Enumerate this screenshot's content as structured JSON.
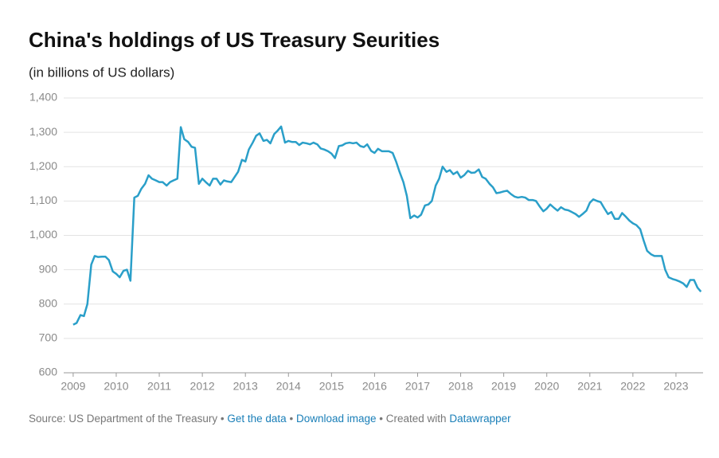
{
  "chart_data": {
    "type": "line",
    "title": "China's holdings of US Treasury Seurities",
    "subtitle": "(in billions of US dollars)",
    "footer": {
      "source": "Source: US Department of the Treasury",
      "separator": "•",
      "links": [
        "Get the data",
        "Download image"
      ],
      "credit": "Created with",
      "credit_link": "Datawrapper"
    },
    "x": [
      2009,
      2009.08,
      2009.17,
      2009.25,
      2009.33,
      2009.42,
      2009.5,
      2009.58,
      2009.67,
      2009.75,
      2009.83,
      2009.92,
      2010,
      2010.08,
      2010.17,
      2010.25,
      2010.33,
      2010.42,
      2010.5,
      2010.58,
      2010.67,
      2010.75,
      2010.83,
      2010.92,
      2011,
      2011.08,
      2011.17,
      2011.25,
      2011.33,
      2011.42,
      2011.5,
      2011.58,
      2011.67,
      2011.75,
      2011.83,
      2011.92,
      2012,
      2012.08,
      2012.17,
      2012.25,
      2012.33,
      2012.42,
      2012.5,
      2012.58,
      2012.67,
      2012.75,
      2012.83,
      2012.92,
      2013,
      2013.08,
      2013.17,
      2013.25,
      2013.33,
      2013.42,
      2013.5,
      2013.58,
      2013.67,
      2013.75,
      2013.83,
      2013.92,
      2014,
      2014.08,
      2014.17,
      2014.25,
      2014.33,
      2014.42,
      2014.5,
      2014.58,
      2014.67,
      2014.75,
      2014.83,
      2014.92,
      2015,
      2015.08,
      2015.17,
      2015.25,
      2015.33,
      2015.42,
      2015.5,
      2015.58,
      2015.67,
      2015.75,
      2015.83,
      2015.92,
      2016,
      2016.08,
      2016.17,
      2016.25,
      2016.33,
      2016.42,
      2016.5,
      2016.58,
      2016.67,
      2016.75,
      2016.83,
      2016.92,
      2017,
      2017.08,
      2017.17,
      2017.25,
      2017.33,
      2017.42,
      2017.5,
      2017.58,
      2017.67,
      2017.75,
      2017.83,
      2017.92,
      2018,
      2018.08,
      2018.17,
      2018.25,
      2018.33,
      2018.42,
      2018.5,
      2018.58,
      2018.67,
      2018.75,
      2018.83,
      2018.92,
      2019,
      2019.08,
      2019.17,
      2019.25,
      2019.33,
      2019.42,
      2019.5,
      2019.58,
      2019.67,
      2019.75,
      2019.83,
      2019.92,
      2020,
      2020.08,
      2020.17,
      2020.25,
      2020.33,
      2020.42,
      2020.5,
      2020.58,
      2020.67,
      2020.75,
      2020.83,
      2020.92,
      2021,
      2021.08,
      2021.17,
      2021.25,
      2021.33,
      2021.42,
      2021.5,
      2021.58,
      2021.67,
      2021.75,
      2021.83,
      2021.92,
      2022,
      2022.08,
      2022.17,
      2022.25,
      2022.33,
      2022.42,
      2022.5,
      2022.58,
      2022.67,
      2022.75,
      2022.83,
      2022.92,
      2023,
      2023.08,
      2023.17,
      2023.25,
      2023.33,
      2023.42,
      2023.5,
      2023.58
    ],
    "values": [
      740,
      745,
      768,
      765,
      800,
      915,
      940,
      937,
      938,
      938,
      928,
      895,
      888,
      878,
      897,
      900,
      868,
      1110,
      1115,
      1135,
      1150,
      1175,
      1165,
      1160,
      1155,
      1155,
      1145,
      1155,
      1160,
      1165,
      1315,
      1280,
      1272,
      1258,
      1255,
      1150,
      1165,
      1155,
      1145,
      1165,
      1165,
      1148,
      1160,
      1157,
      1155,
      1170,
      1185,
      1220,
      1215,
      1250,
      1270,
      1290,
      1297,
      1275,
      1278,
      1268,
      1295,
      1305,
      1317,
      1270,
      1275,
      1272,
      1272,
      1263,
      1270,
      1268,
      1265,
      1270,
      1265,
      1253,
      1250,
      1245,
      1238,
      1225,
      1260,
      1262,
      1268,
      1270,
      1268,
      1270,
      1260,
      1257,
      1265,
      1246,
      1240,
      1252,
      1245,
      1245,
      1245,
      1240,
      1215,
      1185,
      1155,
      1115,
      1050,
      1058,
      1052,
      1060,
      1087,
      1090,
      1100,
      1145,
      1165,
      1200,
      1185,
      1190,
      1178,
      1185,
      1168,
      1175,
      1188,
      1182,
      1183,
      1192,
      1170,
      1165,
      1150,
      1140,
      1123,
      1125,
      1128,
      1130,
      1120,
      1113,
      1110,
      1112,
      1110,
      1103,
      1103,
      1100,
      1085,
      1070,
      1078,
      1090,
      1080,
      1072,
      1082,
      1075,
      1073,
      1068,
      1062,
      1054,
      1062,
      1072,
      1095,
      1105,
      1100,
      1097,
      1080,
      1062,
      1068,
      1048,
      1048,
      1065,
      1055,
      1043,
      1035,
      1030,
      1018,
      985,
      955,
      945,
      940,
      940,
      940,
      900,
      878,
      873,
      870,
      866,
      860,
      850,
      870,
      870,
      848,
      836
    ],
    "color": "#2a9fc9",
    "xlim": [
      2008.78,
      2023.63
    ],
    "xticks": [
      2009,
      2010,
      2011,
      2012,
      2013,
      2014,
      2015,
      2016,
      2017,
      2018,
      2019,
      2020,
      2021,
      2022,
      2023
    ],
    "ylim": [
      600,
      1400
    ],
    "yticks": [
      600,
      700,
      800,
      900,
      {
        "value": 1000,
        "label": "1,000"
      },
      {
        "value": 1100,
        "label": "1,100"
      },
      {
        "value": 1200,
        "label": "1,200"
      },
      {
        "value": 1300,
        "label": "1,300"
      },
      {
        "value": 1400,
        "label": "1,400"
      }
    ],
    "grid": true
  }
}
